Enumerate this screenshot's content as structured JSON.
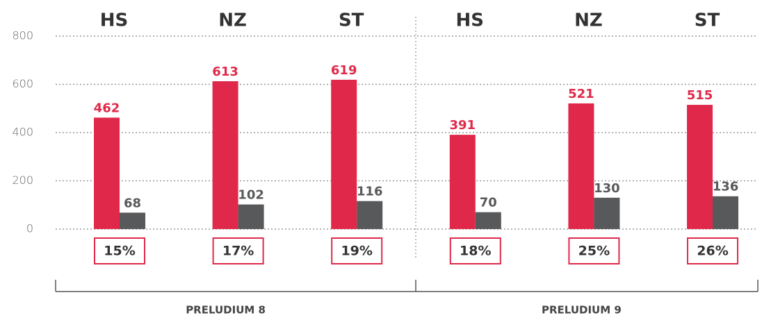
{
  "chart_data": {
    "type": "bar",
    "categories": [
      "HS",
      "NZ",
      "ST",
      "HS",
      "NZ",
      "ST"
    ],
    "groups": [
      "PRELUDIUM 8",
      "PRELUDIUM 9"
    ],
    "series": [
      {
        "color": "#e0294a",
        "values": [
          462,
          613,
          619,
          391,
          521,
          515
        ]
      },
      {
        "color": "#58595b",
        "values": [
          68,
          102,
          116,
          70,
          130,
          136
        ]
      }
    ],
    "shares": [
      15,
      17,
      19,
      18,
      25,
      26
    ],
    "share_labels": [
      "15%",
      "17%",
      "19%",
      "18%",
      "25%",
      "26%"
    ],
    "share_color": "#e0294a",
    "ylim": [
      0,
      800
    ],
    "yticks": [
      0,
      200,
      400,
      600,
      800
    ],
    "grid": true
  }
}
